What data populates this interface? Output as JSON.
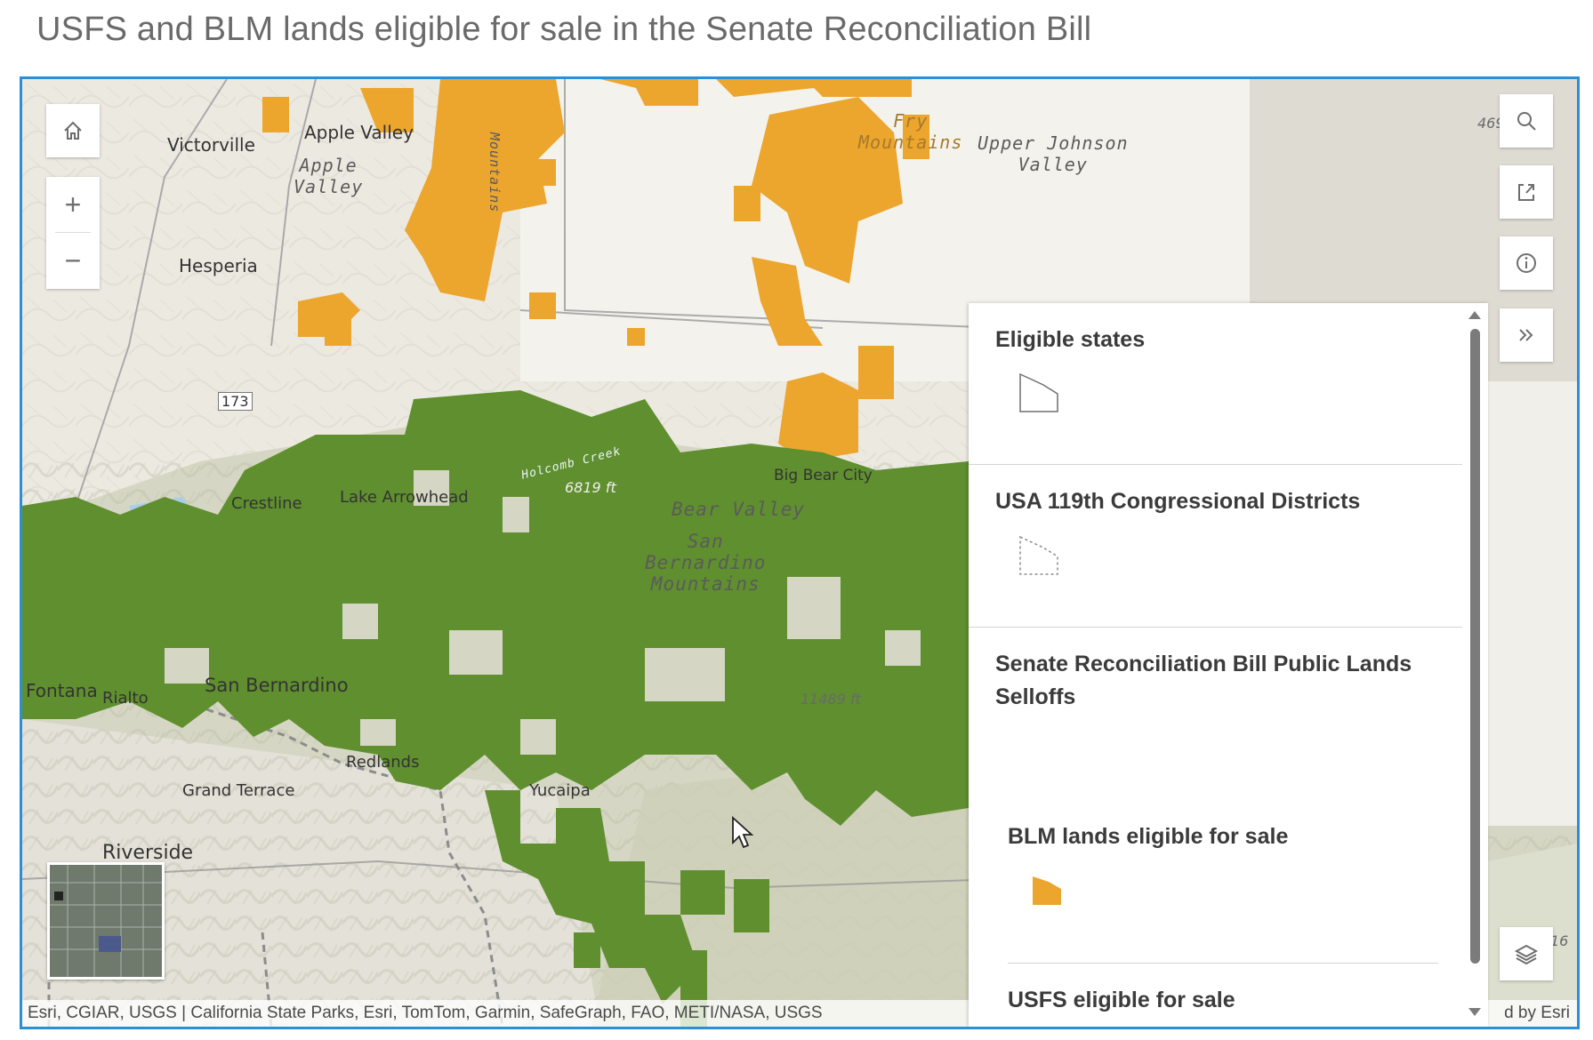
{
  "page": {
    "title": "USFS and BLM lands eligible for sale in the Senate Reconciliation Bill"
  },
  "colors": {
    "blm": "#eca52d",
    "usfs": "#5f8f2e",
    "frame_border": "#2b8fd8",
    "water": "#a9cfe8"
  },
  "map": {
    "places": {
      "victorville": "Victorville",
      "apple_valley_town": "Apple Valley",
      "apple_valley_region": "Apple\nValley",
      "hesperia": "Hesperia",
      "upper_johnson_valley": "Upper Johnson\nValley",
      "fry_mountains": "Fry\nMountains",
      "mountains_vertical": "Mountains",
      "crestline": "Crestline",
      "lake_arrowhead": "Lake Arrowhead",
      "big_bear_city": "Big Bear City",
      "bear_valley": "Bear Valley",
      "san_bernardino_mountains": "San\nBernardino\nMountains",
      "fontana": "Fontana",
      "rialto": "Rialto",
      "san_bernardino": "San Bernardino",
      "redlands": "Redlands",
      "grand_terrace": "Grand Terrace",
      "yucaipa": "Yucaipa",
      "riverside": "Riverside",
      "holcomb_creek": "Holcomb Creek"
    },
    "road_shields": {
      "route_173": "173"
    },
    "elevations": {
      "peak_11489": "11489 ft",
      "pt_6819": "6819 ft",
      "right_469": "469",
      "right_16": "16"
    },
    "attribution": {
      "left": "Esri, CGIAR, USGS | California State Parks, Esri, TomTom, Garmin, SafeGraph, FAO, METI/NASA, USGS",
      "right": "d by Esri"
    }
  },
  "controls": {
    "home": "home-icon",
    "zoom_in": "+",
    "zoom_out": "−",
    "search": "search-icon",
    "share": "share-icon",
    "info": "info-icon",
    "expand": "»",
    "layers": "layers-icon"
  },
  "legend": {
    "sections": [
      {
        "title": "Eligible states",
        "swatch": "outline-solid"
      },
      {
        "title": "USA 119th Congressional Districts",
        "swatch": "outline-dashed"
      },
      {
        "title": "Senate Reconciliation Bill Public Lands Selloffs",
        "items": [
          {
            "label": "BLM lands eligible for sale",
            "color": "#eca52d"
          },
          {
            "label": "USFS eligible for sale",
            "color": "#5f8f2e"
          }
        ]
      }
    ]
  }
}
